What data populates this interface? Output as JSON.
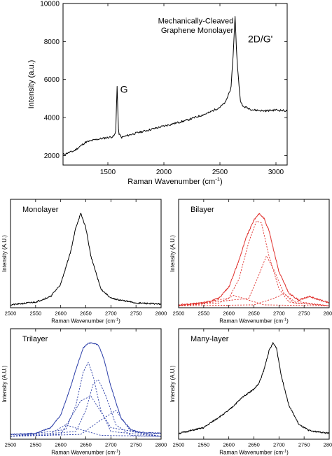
{
  "chart_data": [
    {
      "type": "line",
      "xlabel": "Raman Wavenumber (cm",
      "xlabel_sup": "-1",
      "xlabel_end": ")",
      "ylabel": "Intensity (a.u.)",
      "xlim": [
        1100,
        3100
      ],
      "ylim": [
        1500,
        10000
      ],
      "xticks": [
        1500,
        2000,
        2500,
        3000
      ],
      "yticks": [
        2000,
        4000,
        6000,
        8000,
        10000
      ],
      "annotations": [
        {
          "text": "Mechanically-Cleaved",
          "x": 2620,
          "y": 8950
        },
        {
          "text": "Graphene Monolayer",
          "x": 2620,
          "y": 8450
        },
        {
          "text": "G",
          "x": 1610,
          "y": 5300
        },
        {
          "text": "2D/G'",
          "x": 2750,
          "y": 7950
        }
      ],
      "series": [
        {
          "color": "#000000",
          "x": [
            1100,
            1200,
            1300,
            1400,
            1500,
            1550,
            1570,
            1582,
            1595,
            1620,
            1700,
            1800,
            1900,
            2000,
            2100,
            2200,
            2300,
            2400,
            2500,
            2550,
            2600,
            2620,
            2635,
            2650,
            2680,
            2700,
            2800,
            2900,
            3000,
            3100
          ],
          "y": [
            2050,
            2250,
            2700,
            2850,
            2950,
            3000,
            3200,
            5700,
            3200,
            2950,
            3100,
            3250,
            3400,
            3550,
            3700,
            3850,
            4050,
            4250,
            4550,
            4800,
            5600,
            7500,
            9400,
            7200,
            5000,
            4600,
            4400,
            4350,
            4400,
            4350
          ]
        }
      ]
    },
    {
      "type": "line",
      "xlabel": "Raman Wavenumber (cm",
      "xlabel_sup": "-1",
      "xlabel_end": ")",
      "ylabel": "Intensity (A.U.)",
      "xlim": [
        2500,
        2800
      ],
      "ylim": [
        0,
        1.15
      ],
      "xticks": [
        2500,
        2550,
        2600,
        2650,
        2700,
        2750,
        2800
      ],
      "label": "Monolayer",
      "series": [
        {
          "color": "#000000",
          "x": [
            2500,
            2550,
            2580,
            2600,
            2620,
            2630,
            2640,
            2650,
            2660,
            2680,
            2700,
            2750,
            2800
          ],
          "y": [
            0.03,
            0.06,
            0.12,
            0.25,
            0.6,
            0.85,
            1.0,
            0.85,
            0.55,
            0.2,
            0.1,
            0.05,
            0.04
          ]
        }
      ]
    },
    {
      "type": "line",
      "xlabel": "Raman Wavenumber (cm",
      "xlabel_sup": "-1",
      "xlabel_end": ")",
      "ylabel": "Intensity (A.U.)",
      "xlim": [
        2500,
        2800
      ],
      "ylim": [
        0,
        1.15
      ],
      "xticks": [
        2500,
        2550,
        2600,
        2650,
        2700,
        2750,
        2800
      ],
      "label": "Bilayer",
      "series": [
        {
          "color": "#e0302c",
          "x": [
            2500,
            2550,
            2580,
            2600,
            2620,
            2635,
            2650,
            2660,
            2670,
            2680,
            2690,
            2700,
            2720,
            2740,
            2760,
            2800
          ],
          "y": [
            0.03,
            0.05,
            0.1,
            0.22,
            0.5,
            0.75,
            0.93,
            1.0,
            0.95,
            0.82,
            0.6,
            0.38,
            0.15,
            0.08,
            0.12,
            0.05
          ]
        },
        {
          "color": "#e0302c",
          "dashed": true,
          "x": [
            2500,
            2600,
            2620,
            2640,
            2655,
            2665,
            2680,
            2700,
            2720,
            2800
          ],
          "y": [
            0.02,
            0.1,
            0.3,
            0.7,
            0.92,
            0.9,
            0.55,
            0.2,
            0.06,
            0.02
          ]
        },
        {
          "color": "#e0302c",
          "dashed": true,
          "x": [
            2500,
            2640,
            2660,
            2675,
            2690,
            2710,
            2730,
            2800
          ],
          "y": [
            0.02,
            0.1,
            0.35,
            0.55,
            0.4,
            0.15,
            0.05,
            0.02
          ]
        },
        {
          "color": "#e0302c",
          "dashed": true,
          "x": [
            2500,
            2580,
            2610,
            2640,
            2670,
            2800
          ],
          "y": [
            0.02,
            0.05,
            0.13,
            0.08,
            0.03,
            0.02
          ]
        },
        {
          "color": "#e0302c",
          "dashed": true,
          "x": [
            2500,
            2650,
            2690,
            2710,
            2730,
            2800
          ],
          "y": [
            0.02,
            0.03,
            0.1,
            0.15,
            0.07,
            0.02
          ]
        }
      ]
    },
    {
      "type": "line",
      "xlabel": "Raman Wavenumber (cm",
      "xlabel_sup": "-1",
      "xlabel_end": ")",
      "ylabel": "Intensity (A.U.)",
      "xlim": [
        2500,
        2800
      ],
      "ylim": [
        0,
        1.15
      ],
      "xticks": [
        2500,
        2550,
        2600,
        2650,
        2700,
        2750,
        2800
      ],
      "label": "Trilayer",
      "series": [
        {
          "color": "#2b3ea8",
          "x": [
            2500,
            2550,
            2580,
            2600,
            2620,
            2635,
            2645,
            2655,
            2665,
            2675,
            2685,
            2700,
            2720,
            2740,
            2760,
            2800
          ],
          "y": [
            0.05,
            0.06,
            0.12,
            0.25,
            0.55,
            0.8,
            0.95,
            1.0,
            1.0,
            0.98,
            0.85,
            0.55,
            0.22,
            0.1,
            0.07,
            0.06
          ]
        },
        {
          "color": "#2b3ea8",
          "dashed": true,
          "x": [
            2500,
            2610,
            2630,
            2645,
            2655,
            2665,
            2680,
            2700,
            2800
          ],
          "y": [
            0.03,
            0.1,
            0.35,
            0.7,
            0.8,
            0.65,
            0.3,
            0.08,
            0.03
          ]
        },
        {
          "color": "#2b3ea8",
          "dashed": true,
          "x": [
            2500,
            2630,
            2650,
            2665,
            2675,
            2690,
            2710,
            2740,
            2800
          ],
          "y": [
            0.03,
            0.08,
            0.3,
            0.58,
            0.62,
            0.45,
            0.15,
            0.04,
            0.03
          ]
        },
        {
          "color": "#2b3ea8",
          "dashed": true,
          "x": [
            2500,
            2580,
            2610,
            2640,
            2680,
            2800
          ],
          "y": [
            0.03,
            0.06,
            0.15,
            0.1,
            0.04,
            0.03
          ]
        },
        {
          "color": "#2b3ea8",
          "dashed": true,
          "x": [
            2500,
            2640,
            2680,
            2710,
            2740,
            2800
          ],
          "y": [
            0.03,
            0.05,
            0.2,
            0.3,
            0.08,
            0.03
          ]
        },
        {
          "color": "#2b3ea8",
          "dashed": true,
          "x": [
            2500,
            2600,
            2640,
            2660,
            2700,
            2800
          ],
          "y": [
            0.03,
            0.05,
            0.4,
            0.45,
            0.12,
            0.03
          ]
        }
      ]
    },
    {
      "type": "line",
      "xlabel": "Raman Wavenumber (cm",
      "xlabel_sup": "-1",
      "xlabel_end": ")",
      "ylabel": "Intensity (A.U.)",
      "xlim": [
        2500,
        2800
      ],
      "ylim": [
        0,
        1.15
      ],
      "xticks": [
        2500,
        2550,
        2600,
        2650,
        2700,
        2750,
        2800
      ],
      "label": "Many-layer",
      "series": [
        {
          "color": "#000000",
          "x": [
            2500,
            2550,
            2600,
            2630,
            2650,
            2660,
            2670,
            2680,
            2688,
            2695,
            2705,
            2720,
            2740,
            2760,
            2800
          ],
          "y": [
            0.06,
            0.12,
            0.3,
            0.45,
            0.52,
            0.58,
            0.72,
            0.92,
            1.0,
            0.95,
            0.65,
            0.35,
            0.15,
            0.09,
            0.06
          ]
        }
      ]
    }
  ]
}
